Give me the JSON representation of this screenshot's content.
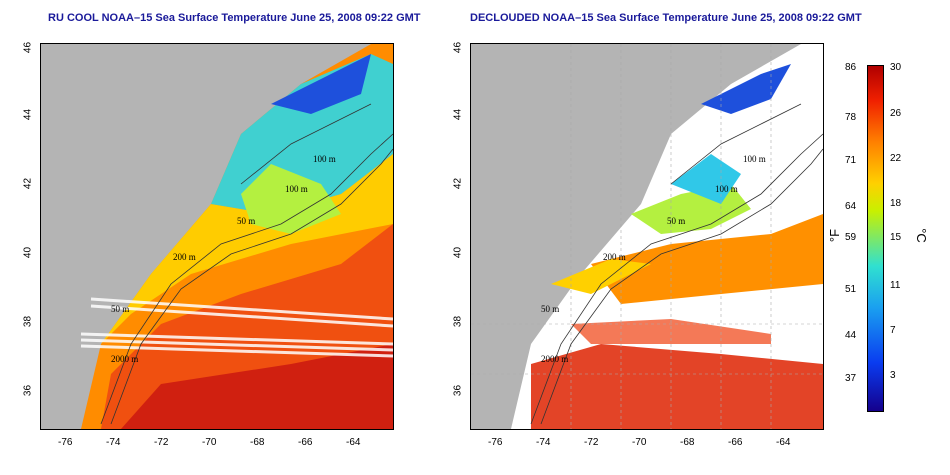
{
  "left_title": "RU COOL NOAA–15 Sea Surface Temperature June 25, 2008 09:22 GMT",
  "right_title": "DECLOUDED NOAA–15 Sea Surface Temperature June 25, 2008 09:22 GMT",
  "lat_ticks": [
    "46",
    "44",
    "42",
    "40",
    "38",
    "36"
  ],
  "lon_ticks": [
    "-76",
    "-74",
    "-72",
    "-70",
    "-68",
    "-66",
    "-64"
  ],
  "contour_labels": {
    "left": [
      "100 m",
      "100 m",
      "50 m",
      "200 m",
      "50 m",
      "2000 m"
    ],
    "right": [
      "100 m",
      "100 m",
      "50 m",
      "200 m",
      "50 m",
      "2000 m"
    ]
  },
  "colorbar": {
    "fahrenheit_ticks": [
      "86",
      "78",
      "71",
      "64",
      "59",
      "51",
      "44",
      "37"
    ],
    "celsius_ticks": [
      "30",
      "26",
      "22",
      "18",
      "15",
      "11",
      "7",
      "3"
    ],
    "fahrenheit_unit": "°F",
    "celsius_unit": "°C"
  },
  "colors": {
    "land": "#b4b4b4",
    "cold": "#1e50dc",
    "cool": "#30c8e8",
    "mid": "#b4f040",
    "warm": "#ff8c00",
    "hot": "#e03010"
  }
}
